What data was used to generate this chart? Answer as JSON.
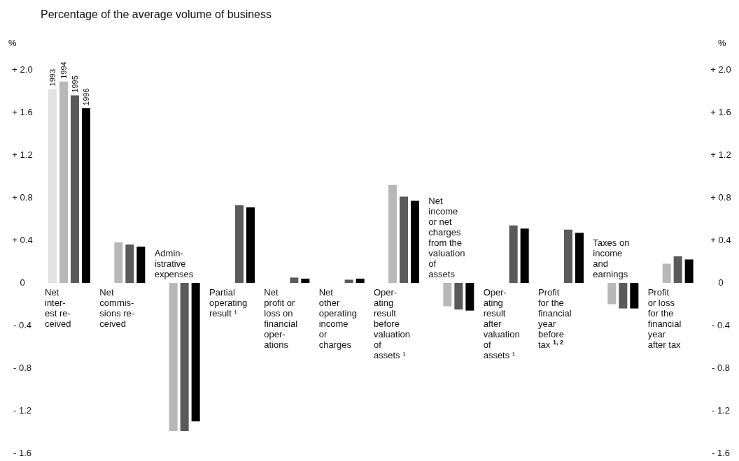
{
  "chart_data": {
    "type": "bar",
    "title": "Percentage of the average volume of business",
    "ylabel": "%",
    "y2label": "%",
    "categories": [
      "Net\ninter-\nest re-\nceived",
      "Net\ncommis-\nsions re-\nceived",
      "Admin-\nistrative\nexpenses",
      "Partial\noperating\nresult ¹",
      "Net\nprofit or\nloss on\nfinancial\noper-\nations",
      "Net\nother\noperating\nincome\nor\ncharges",
      "Oper-\nating\nresult\nbefore\nvaluation\nof\nassets ¹",
      "Net\nincome\nor net\ncharges\nfrom the\nvaluation\nof\nassets",
      "Oper-\nating\nresult\nafter\nvaluation\nof\nassets ¹",
      "Profit\nfor the\nfinancial\nyear\nbefore\ntax $^{1, 2}$",
      "Taxes on\nincome\nand\nearnings",
      "Profit\nor loss\nfor the\nfinancial\nyear\nafter tax"
    ],
    "series": [
      {
        "name": "1993",
        "color": "#e2e2e2",
        "values": [
          1.82,
          null,
          null,
          null,
          null,
          null,
          null,
          null,
          null,
          null,
          null,
          null
        ]
      },
      {
        "name": "1994",
        "color": "#b8b8b8",
        "values": [
          1.89,
          0.38,
          -1.39,
          null,
          null,
          null,
          0.92,
          -0.22,
          null,
          null,
          -0.2,
          0.18
        ]
      },
      {
        "name": "1995",
        "color": "#5a5a5a",
        "values": [
          1.76,
          0.36,
          -1.39,
          0.73,
          0.05,
          0.03,
          0.81,
          -0.25,
          0.54,
          0.5,
          -0.24,
          0.25
        ]
      },
      {
        "name": "1996",
        "color": "#000000",
        "values": [
          1.64,
          0.34,
          -1.3,
          0.71,
          0.04,
          0.04,
          0.77,
          -0.26,
          0.51,
          0.47,
          -0.24,
          0.22
        ]
      }
    ],
    "ylim": [
      -1.6,
      2.0
    ],
    "yticks": [
      {
        "value": 2.0,
        "label": "+ 2.0"
      },
      {
        "value": 1.6,
        "label": "+ 1.6"
      },
      {
        "value": 1.2,
        "label": "+ 1.2"
      },
      {
        "value": 0.8,
        "label": "+ 0.8"
      },
      {
        "value": 0.4,
        "label": "+ 0.4"
      },
      0,
      {
        "value": -0.4,
        "label": "- 0.4"
      },
      {
        "value": -0.8,
        "label": "- 0.8"
      },
      {
        "value": -1.2,
        "label": "- 1.2"
      },
      {
        "value": -1.6,
        "label": "- 1.6"
      }
    ],
    "y2lim": [
      -1.6,
      2.0
    ],
    "y2ticks": [
      {
        "value": 2.0,
        "label": "+ 2.0"
      },
      {
        "value": 1.6,
        "label": "+ 1.6"
      },
      {
        "value": 1.2,
        "label": "+ 1.2"
      },
      {
        "value": 0.8,
        "label": "+ 0.8"
      },
      {
        "value": 0.4,
        "label": "+ 0.4"
      },
      0,
      {
        "value": -0.4,
        "label": "- 0.4"
      },
      {
        "value": -0.8,
        "label": "- 0.8"
      },
      {
        "value": -1.2,
        "label": "- 1.2"
      },
      {
        "value": -1.6,
        "label": "- 1.6"
      }
    ],
    "grid": false,
    "legend": false
  }
}
